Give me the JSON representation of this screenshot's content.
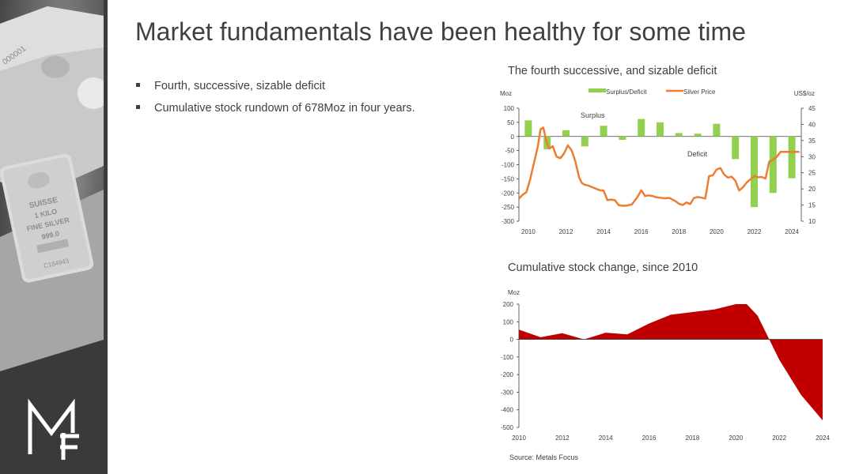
{
  "slide": {
    "title": "Market fundamentals have been healthy for some time",
    "bullets": [
      "Fourth, successive, sizable deficit",
      "Cumulative stock rundown of 678Moz in four years."
    ],
    "source": "Source: Metals Focus",
    "logo": "MF",
    "bar_markings": [
      "000001",
      "SUISSE",
      "1 KILO",
      "FINE SILVER",
      "999.0",
      "C184843"
    ]
  },
  "chart_data": [
    {
      "type": "bar",
      "title": "The fourth successive, and sizable deficit",
      "ylabel": "Moz",
      "ylabel2": "US$/oz",
      "ylim": [
        -300,
        100
      ],
      "y2lim": [
        10,
        45
      ],
      "yticks": [
        100,
        50,
        0,
        -50,
        -100,
        -150,
        -200,
        -250,
        -300
      ],
      "y2ticks": [
        45,
        40,
        35,
        30,
        25,
        20,
        15,
        10
      ],
      "xticks": [
        2010,
        2012,
        2014,
        2016,
        2018,
        2020,
        2022,
        2024
      ],
      "legend": [
        "Surplus/Deficit",
        "Silver Price"
      ],
      "annotations": [
        "Surplus",
        "Deficit"
      ],
      "colors": {
        "bars": "#92d050",
        "line": "#ed7d31"
      },
      "series": [
        {
          "name": "Surplus/Deficit",
          "x": [
            2010,
            2011,
            2012,
            2013,
            2014,
            2015,
            2016,
            2017,
            2018,
            2019,
            2020,
            2021,
            2022,
            2023,
            2024
          ],
          "values": [
            57,
            -45,
            22,
            -35,
            38,
            -12,
            62,
            50,
            12,
            10,
            45,
            -80,
            -250,
            -200,
            -148
          ]
        },
        {
          "name": "Silver Price",
          "x": [
            2009.5,
            2009.7,
            2009.9,
            2010.1,
            2010.3,
            2010.5,
            2010.65,
            2010.8,
            2010.95,
            2011.1,
            2011.3,
            2011.5,
            2011.7,
            2011.9,
            2012.1,
            2012.3,
            2012.5,
            2012.7,
            2012.85,
            2013.0,
            2013.2,
            2013.5,
            2013.8,
            2014.0,
            2014.2,
            2014.4,
            2014.6,
            2014.8,
            2015.0,
            2015.2,
            2015.5,
            2015.8,
            2016.0,
            2016.2,
            2016.4,
            2016.6,
            2016.8,
            2017.0,
            2017.2,
            2017.5,
            2017.8,
            2018.0,
            2018.2,
            2018.4,
            2018.6,
            2018.8,
            2019.0,
            2019.2,
            2019.4,
            2019.6,
            2019.8,
            2020.0,
            2020.2,
            2020.4,
            2020.6,
            2020.8,
            2021.0,
            2021.2,
            2021.4,
            2021.6,
            2021.8,
            2022.0,
            2022.2,
            2022.4,
            2022.6,
            2022.8,
            2023.0,
            2023.2,
            2023.4,
            2023.6,
            2023.8,
            2024.0,
            2024.2,
            2024.4
          ],
          "values": [
            17,
            18.2,
            19,
            23,
            28,
            33,
            38.5,
            39,
            35,
            32.5,
            33.2,
            30,
            29.5,
            31,
            33.5,
            32,
            28.5,
            23.5,
            21.8,
            21.3,
            21,
            20.3,
            19.6,
            19.5,
            16.5,
            16.7,
            16.5,
            15,
            14.8,
            14.8,
            15.2,
            17.5,
            19.6,
            17.8,
            18,
            17.8,
            17.4,
            17.3,
            17.1,
            17.2,
            16.3,
            15.4,
            15,
            15.8,
            15.3,
            17.2,
            17.5,
            17.3,
            17,
            24,
            24.2,
            26,
            26.5,
            24.5,
            23.5,
            23.8,
            22.5,
            19.5,
            20.5,
            22,
            23,
            24,
            23.6,
            23.7,
            23.2,
            28.5,
            29,
            30,
            31.5,
            31.5,
            31.5,
            31.5,
            31.5,
            31.5
          ]
        }
      ]
    },
    {
      "type": "area",
      "title": "Cumulative stock change, since 2010",
      "ylabel": "Moz",
      "ylim": [
        -500,
        200
      ],
      "yticks": [
        200,
        100,
        0,
        -100,
        -200,
        -300,
        -400,
        -500
      ],
      "xticks": [
        2010,
        2012,
        2014,
        2016,
        2018,
        2020,
        2022,
        2024
      ],
      "color": "#c00000",
      "x": [
        2010,
        2011,
        2012,
        2013,
        2014,
        2015,
        2016,
        2017,
        2018,
        2019,
        2020,
        2020.5,
        2021,
        2022,
        2023,
        2024
      ],
      "values": [
        55,
        12,
        35,
        0,
        38,
        28,
        90,
        140,
        155,
        170,
        200,
        200,
        135,
        -115,
        -315,
        -460
      ]
    }
  ]
}
